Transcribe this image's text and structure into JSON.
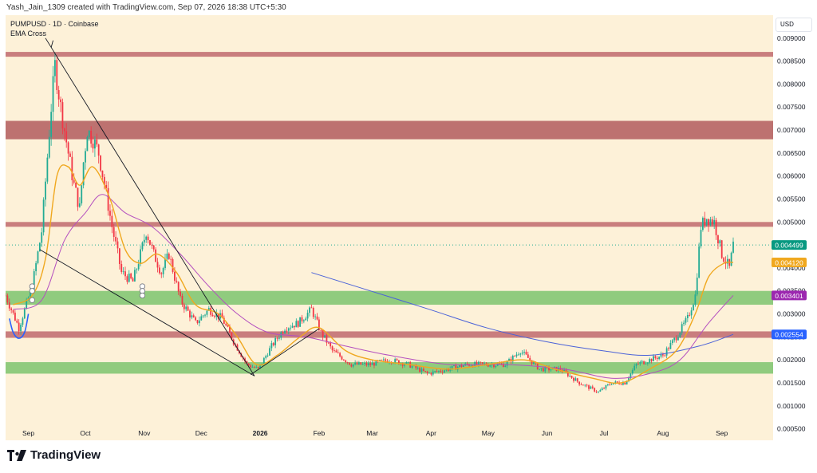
{
  "header": {
    "created_by": "Yash_Jain_1309 created with TradingView.com, Sep 07, 2026 18:38 UTC+5:30"
  },
  "legend": {
    "symbol": "PUMPUSD · 1D · Coinbase",
    "indicator": "EMA Cross"
  },
  "currency_button": {
    "label": "USD"
  },
  "brand": {
    "name": "TradingView",
    "icon": "tradingview-logo-icon"
  },
  "colors": {
    "background": "#fdf1d8",
    "resistance_zone": "#c06a6f",
    "support_zone": "#7cc46e",
    "candle_up": "#22ab94",
    "candle_down": "#f23645",
    "ema_fast": "#f0a81f",
    "ema_slow": "#b44fbf",
    "long_ma": "#4b62d8",
    "trendline": "#131722"
  },
  "chart_data": {
    "type": "candlestick",
    "yaxis": {
      "min": 0.00025,
      "max": 0.0095,
      "scale": "linear",
      "ticks": [
        "0.000500",
        "0.001000",
        "0.001500",
        "0.002000",
        "0.002500",
        "0.003000",
        "0.003500",
        "0.004000",
        "0.004500",
        "0.005000",
        "0.005500",
        "0.006000",
        "0.006500",
        "0.007000",
        "0.007500",
        "0.008000",
        "0.008500",
        "0.009000"
      ]
    },
    "xaxis": {
      "start": "2025-08-20",
      "end": "2026-09-28",
      "ticks": [
        {
          "label": "Sep",
          "date": "2025-09-01",
          "bold": false
        },
        {
          "label": "Oct",
          "date": "2025-10-01",
          "bold": false
        },
        {
          "label": "Nov",
          "date": "2025-11-01",
          "bold": false
        },
        {
          "label": "Dec",
          "date": "2025-12-01",
          "bold": false
        },
        {
          "label": "2026",
          "date": "2026-01-01",
          "bold": true
        },
        {
          "label": "Feb",
          "date": "2026-02-01",
          "bold": false
        },
        {
          "label": "Mar",
          "date": "2026-03-01",
          "bold": false
        },
        {
          "label": "Apr",
          "date": "2026-04-01",
          "bold": false
        },
        {
          "label": "May",
          "date": "2026-05-01",
          "bold": false
        },
        {
          "label": "Jun",
          "date": "2026-06-01",
          "bold": false
        },
        {
          "label": "Jul",
          "date": "2026-07-01",
          "bold": false
        },
        {
          "label": "Aug",
          "date": "2026-08-01",
          "bold": false
        },
        {
          "label": "Sep",
          "date": "2026-09-01",
          "bold": false
        }
      ]
    },
    "price_labels": [
      {
        "value": 0.004499,
        "text": "0.004499",
        "color": "#089981"
      },
      {
        "value": 0.00412,
        "text": "0.004120",
        "color": "#f0a81f"
      },
      {
        "value": 0.003401,
        "text": "0.003401",
        "color": "#9c27b0"
      },
      {
        "value": 0.002554,
        "text": "0.002554",
        "color": "#2962ff"
      }
    ],
    "current_price": 0.004499,
    "zones": [
      {
        "name": "resistance",
        "low": 0.0086,
        "high": 0.0087,
        "color": "#c06a6f"
      },
      {
        "name": "resistance",
        "low": 0.0068,
        "high": 0.0072,
        "color": "#b25c5e"
      },
      {
        "name": "resistance",
        "low": 0.0049,
        "high": 0.005,
        "color": "#c06a6f"
      },
      {
        "name": "support",
        "low": 0.0032,
        "high": 0.0035,
        "color": "#7cc46e"
      },
      {
        "name": "resistance",
        "low": 0.00248,
        "high": 0.00262,
        "color": "#c06a6f"
      },
      {
        "name": "support",
        "low": 0.0017,
        "high": 0.00195,
        "color": "#7cc46e"
      }
    ],
    "trendlines": [
      {
        "from": [
          "2025-09-10",
          0.009
        ],
        "to": [
          "2025-12-29",
          0.00165
        ]
      },
      {
        "from": [
          "2025-09-07",
          0.0044
        ],
        "to": [
          "2025-12-29",
          0.00165
        ]
      },
      {
        "from": [
          "2025-12-27",
          0.00168
        ],
        "to": [
          "2026-02-01",
          0.00268
        ]
      },
      {
        "from": [
          "2025-09-13",
          0.0088
        ],
        "to": [
          "2025-09-14",
          0.00895
        ]
      }
    ],
    "anchors": [
      {
        "date": "2025-09-03",
        "price": 0.0036
      },
      {
        "date": "2025-09-03",
        "price": 0.0035
      },
      {
        "date": "2025-09-03",
        "price": 0.0033
      },
      {
        "date": "2025-10-31",
        "price": 0.0036
      },
      {
        "date": "2025-10-31",
        "price": 0.0035
      },
      {
        "date": "2025-10-31",
        "price": 0.0034
      }
    ],
    "rounding_bottom": [
      [
        "2025-08-22",
        0.0029
      ],
      [
        "2025-08-24",
        0.0026
      ],
      [
        "2025-08-27",
        0.00247
      ],
      [
        "2025-08-30",
        0.0026
      ],
      [
        "2025-09-01",
        0.003
      ]
    ],
    "close_path": [
      [
        "2025-08-20",
        0.0034
      ],
      [
        "2025-08-27",
        0.0027
      ],
      [
        "2025-09-03",
        0.0036
      ],
      [
        "2025-09-08",
        0.0048
      ],
      [
        "2025-09-13",
        0.0075
      ],
      [
        "2025-09-15",
        0.0084
      ],
      [
        "2025-09-18",
        0.0075
      ],
      [
        "2025-09-22",
        0.0065
      ],
      [
        "2025-09-25",
        0.0058
      ],
      [
        "2025-09-28",
        0.0053
      ],
      [
        "2025-09-30",
        0.0063
      ],
      [
        "2025-10-02",
        0.007
      ],
      [
        "2025-10-05",
        0.0068
      ],
      [
        "2025-10-08",
        0.0065
      ],
      [
        "2025-10-12",
        0.0056
      ],
      [
        "2025-10-15",
        0.0049
      ],
      [
        "2025-10-20",
        0.0039
      ],
      [
        "2025-10-26",
        0.0037
      ],
      [
        "2025-10-30",
        0.0043
      ],
      [
        "2025-11-02",
        0.0048
      ],
      [
        "2025-11-06",
        0.0043
      ],
      [
        "2025-11-10",
        0.0039
      ],
      [
        "2025-11-14",
        0.0043
      ],
      [
        "2025-11-20",
        0.0033
      ],
      [
        "2025-11-28",
        0.0028
      ],
      [
        "2025-12-05",
        0.0031
      ],
      [
        "2025-12-12",
        0.0029
      ],
      [
        "2025-12-18",
        0.0024
      ],
      [
        "2025-12-25",
        0.0019
      ],
      [
        "2025-12-31",
        0.0018
      ],
      [
        "2026-01-07",
        0.0023
      ],
      [
        "2026-01-14",
        0.0027
      ],
      [
        "2026-01-21",
        0.0028
      ],
      [
        "2026-01-28",
        0.0031
      ],
      [
        "2026-02-02",
        0.0026
      ],
      [
        "2026-02-08",
        0.0022
      ],
      [
        "2026-02-18",
        0.0019
      ],
      [
        "2026-02-28",
        0.0019
      ],
      [
        "2026-03-10",
        0.002
      ],
      [
        "2026-03-20",
        0.0019
      ],
      [
        "2026-03-30",
        0.0017
      ],
      [
        "2026-04-10",
        0.0018
      ],
      [
        "2026-04-20",
        0.0019
      ],
      [
        "2026-04-30",
        0.0019
      ],
      [
        "2026-05-10",
        0.0019
      ],
      [
        "2026-05-18",
        0.0022
      ],
      [
        "2026-05-28",
        0.0018
      ],
      [
        "2026-06-08",
        0.0018
      ],
      [
        "2026-06-18",
        0.0015
      ],
      [
        "2026-06-28",
        0.0013
      ],
      [
        "2026-07-05",
        0.0015
      ],
      [
        "2026-07-12",
        0.0015
      ],
      [
        "2026-07-18",
        0.0019
      ],
      [
        "2026-07-25",
        0.002
      ],
      [
        "2026-08-01",
        0.0021
      ],
      [
        "2026-08-08",
        0.0025
      ],
      [
        "2026-08-14",
        0.0029
      ],
      [
        "2026-08-18",
        0.0034
      ],
      [
        "2026-08-21",
        0.0049
      ],
      [
        "2026-08-24",
        0.0051
      ],
      [
        "2026-08-28",
        0.005
      ],
      [
        "2026-09-01",
        0.0043
      ],
      [
        "2026-09-05",
        0.004
      ],
      [
        "2026-09-07",
        0.0045
      ]
    ],
    "ema_fast": [
      [
        "2025-08-24",
        0.0032
      ],
      [
        "2025-09-03",
        0.0034
      ],
      [
        "2025-09-10",
        0.0042
      ],
      [
        "2025-09-16",
        0.006
      ],
      [
        "2025-09-22",
        0.0062
      ],
      [
        "2025-09-28",
        0.0058
      ],
      [
        "2025-10-05",
        0.0062
      ],
      [
        "2025-10-14",
        0.0055
      ],
      [
        "2025-10-22",
        0.0044
      ],
      [
        "2025-10-30",
        0.0041
      ],
      [
        "2025-11-08",
        0.0043
      ],
      [
        "2025-11-18",
        0.0039
      ],
      [
        "2025-11-28",
        0.0032
      ],
      [
        "2025-12-10",
        0.003
      ],
      [
        "2025-12-20",
        0.0025
      ],
      [
        "2025-12-30",
        0.0019
      ],
      [
        "2026-01-10",
        0.0021
      ],
      [
        "2026-01-22",
        0.0025
      ],
      [
        "2026-02-01",
        0.0027
      ],
      [
        "2026-02-15",
        0.0022
      ],
      [
        "2026-03-01",
        0.002
      ],
      [
        "2026-03-20",
        0.0019
      ],
      [
        "2026-04-10",
        0.0018
      ],
      [
        "2026-05-01",
        0.0019
      ],
      [
        "2026-05-20",
        0.002
      ],
      [
        "2026-06-05",
        0.0018
      ],
      [
        "2026-06-25",
        0.0016
      ],
      [
        "2026-07-10",
        0.0015
      ],
      [
        "2026-07-25",
        0.0018
      ],
      [
        "2026-08-08",
        0.0022
      ],
      [
        "2026-08-18",
        0.003
      ],
      [
        "2026-08-25",
        0.0038
      ],
      [
        "2026-09-02",
        0.0041
      ],
      [
        "2026-09-07",
        0.00412
      ]
    ],
    "ema_slow": [
      [
        "2025-08-24",
        0.0031
      ],
      [
        "2025-09-08",
        0.0033
      ],
      [
        "2025-09-20",
        0.0046
      ],
      [
        "2025-10-01",
        0.0052
      ],
      [
        "2025-10-10",
        0.0056
      ],
      [
        "2025-10-22",
        0.0052
      ],
      [
        "2025-11-05",
        0.0049
      ],
      [
        "2025-11-20",
        0.0043
      ],
      [
        "2025-12-05",
        0.0036
      ],
      [
        "2025-12-20",
        0.003
      ],
      [
        "2026-01-05",
        0.0026
      ],
      [
        "2026-01-25",
        0.0025
      ],
      [
        "2026-02-15",
        0.0023
      ],
      [
        "2026-03-10",
        0.0021
      ],
      [
        "2026-04-10",
        0.0019
      ],
      [
        "2026-05-10",
        0.0019
      ],
      [
        "2026-06-10",
        0.0018
      ],
      [
        "2026-07-05",
        0.0016
      ],
      [
        "2026-07-25",
        0.0017
      ],
      [
        "2026-08-10",
        0.002
      ],
      [
        "2026-08-25",
        0.0028
      ],
      [
        "2026-09-07",
        0.003401
      ]
    ],
    "long_ma": [
      [
        "2026-01-28",
        0.0039
      ],
      [
        "2026-02-28",
        0.0035
      ],
      [
        "2026-03-31",
        0.0031
      ],
      [
        "2026-04-30",
        0.0027
      ],
      [
        "2026-05-31",
        0.0024
      ],
      [
        "2026-06-30",
        0.0022
      ],
      [
        "2026-07-25",
        0.0021
      ],
      [
        "2026-08-20",
        0.0023
      ],
      [
        "2026-09-07",
        0.002554
      ]
    ]
  }
}
